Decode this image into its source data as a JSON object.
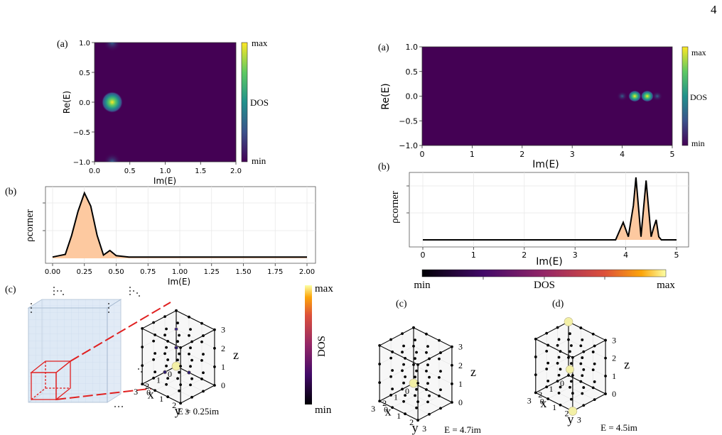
{
  "page_number": "4",
  "colors": {
    "viridis_dark": "#440154",
    "viridis_mid": "#21918c",
    "viridis_bright": "#fde725",
    "fill_orange": "#fdc9a0",
    "inferno_low": "#000004",
    "inferno_high": "#fcffa4",
    "cube_face": "#dbe7f5",
    "cube_red": "#e02020"
  },
  "left": {
    "panel_a": {
      "label": "(a)",
      "xlabel": "Im(E)",
      "ylabel": "Re(E)",
      "xticks": [
        "0.0",
        "0.5",
        "1.0",
        "1.5",
        "2.0"
      ],
      "yticks": [
        "1.0",
        "0.5",
        "0.0",
        "−0.5",
        "−1.0"
      ],
      "colorbar": {
        "max": "max",
        "mid": "DOS",
        "min": "min"
      }
    },
    "panel_b": {
      "label": "(b)",
      "xlabel": "Im(E)",
      "ylabel": "ρcorner",
      "xticks": [
        "0.00",
        "0.25",
        "0.50",
        "0.75",
        "1.00",
        "1.25",
        "1.50",
        "1.75",
        "2.00"
      ]
    },
    "panel_c": {
      "label": "(c)",
      "energy": "E = 0.25im",
      "axes": {
        "x": "x",
        "y": "y",
        "z": "z"
      },
      "xticks": [
        "0",
        "1",
        "2",
        "3"
      ],
      "yticks": [
        "0",
        "1",
        "2",
        "3"
      ],
      "zticks": [
        "0",
        "1",
        "2",
        "3"
      ],
      "colorbar": {
        "max": "max",
        "label": "DOS",
        "min": "min"
      }
    }
  },
  "right": {
    "panel_a": {
      "label": "(a)",
      "xlabel": "Im(E)",
      "ylabel": "Re(E)",
      "xticks": [
        "0",
        "1",
        "2",
        "3",
        "4",
        "5"
      ],
      "yticks": [
        "1.0",
        "0.5",
        "0.0",
        "−0.5",
        "−1.0"
      ],
      "colorbar": {
        "max": "max",
        "mid": "DOS",
        "min": "min"
      }
    },
    "panel_b": {
      "label": "(b)",
      "xlabel": "Im(E)",
      "ylabel": "ρcorner",
      "xticks": [
        "0",
        "1",
        "2",
        "3",
        "4",
        "5"
      ]
    },
    "colorbar": {
      "min": "min",
      "label": "DOS",
      "max": "max"
    },
    "panel_c": {
      "label": "(c)",
      "energy": "E = 4.7im",
      "axes": {
        "x": "x",
        "y": "y",
        "z": "z"
      },
      "xticks": [
        "0",
        "1",
        "2",
        "3"
      ],
      "yticks": [
        "0",
        "1",
        "2",
        "3"
      ],
      "zticks": [
        "0",
        "1",
        "2",
        "3"
      ]
    },
    "panel_d": {
      "label": "(d)",
      "energy": "E = 4.5im",
      "axes": {
        "x": "x",
        "y": "y",
        "z": "z"
      },
      "xticks": [
        "0",
        "1",
        "2",
        "3"
      ],
      "yticks": [
        "0",
        "1",
        "2",
        "3"
      ],
      "zticks": [
        "0",
        "1",
        "2",
        "3"
      ]
    }
  },
  "chart_data": [
    {
      "type": "heatmap",
      "panel": "left (a)",
      "xlabel": "Im(E)",
      "ylabel": "Re(E)",
      "xlim": [
        0,
        2
      ],
      "ylim": [
        -1,
        1
      ],
      "peaks": [
        {
          "x": 0.25,
          "y": 0.0,
          "intensity": 1.0
        },
        {
          "x": 0.25,
          "y": 1.0,
          "intensity": 0.35
        },
        {
          "x": 0.25,
          "y": -1.0,
          "intensity": 0.35
        }
      ],
      "colorbar": [
        "min",
        "DOS",
        "max"
      ]
    },
    {
      "type": "area",
      "panel": "left (b)",
      "xlabel": "Im(E)",
      "ylabel": "ρcorner",
      "xlim": [
        0,
        2
      ],
      "x": [
        0.0,
        0.05,
        0.1,
        0.15,
        0.2,
        0.25,
        0.3,
        0.35,
        0.4,
        0.45,
        0.5,
        0.55,
        0.6,
        0.8,
        1.0,
        1.25,
        1.5,
        1.75,
        2.0
      ],
      "values": [
        0.02,
        0.04,
        0.06,
        0.35,
        0.72,
        1.0,
        0.8,
        0.35,
        0.05,
        0.12,
        0.04,
        0.03,
        0.02,
        0.02,
        0.02,
        0.02,
        0.02,
        0.02,
        0.02
      ],
      "grid": true
    },
    {
      "type": "heatmap",
      "panel": "right (a)",
      "xlabel": "Im(E)",
      "ylabel": "Re(E)",
      "xlim": [
        0,
        5
      ],
      "ylim": [
        -1,
        1
      ],
      "peaks": [
        {
          "x": 4.0,
          "y": 0.0,
          "intensity": 0.45
        },
        {
          "x": 4.25,
          "y": 0.0,
          "intensity": 1.0
        },
        {
          "x": 4.5,
          "y": 0.0,
          "intensity": 1.0
        },
        {
          "x": 4.7,
          "y": 0.0,
          "intensity": 0.5
        }
      ],
      "colorbar": [
        "min",
        "DOS",
        "max"
      ]
    },
    {
      "type": "area",
      "panel": "right (b)",
      "xlabel": "Im(E)",
      "ylabel": "ρcorner",
      "xlim": [
        0,
        5
      ],
      "x": [
        0.0,
        1.0,
        2.0,
        3.0,
        3.8,
        3.95,
        4.05,
        4.15,
        4.2,
        4.3,
        4.4,
        4.5,
        4.55,
        4.6,
        4.65,
        4.7,
        4.75,
        4.85,
        5.0
      ],
      "values": [
        0.0,
        0.0,
        0.0,
        0.0,
        0.0,
        0.28,
        0.05,
        0.55,
        1.0,
        0.05,
        0.95,
        0.05,
        0.2,
        0.32,
        0.05,
        0.0,
        0.0,
        0.0,
        0.0
      ],
      "grid": true
    }
  ]
}
